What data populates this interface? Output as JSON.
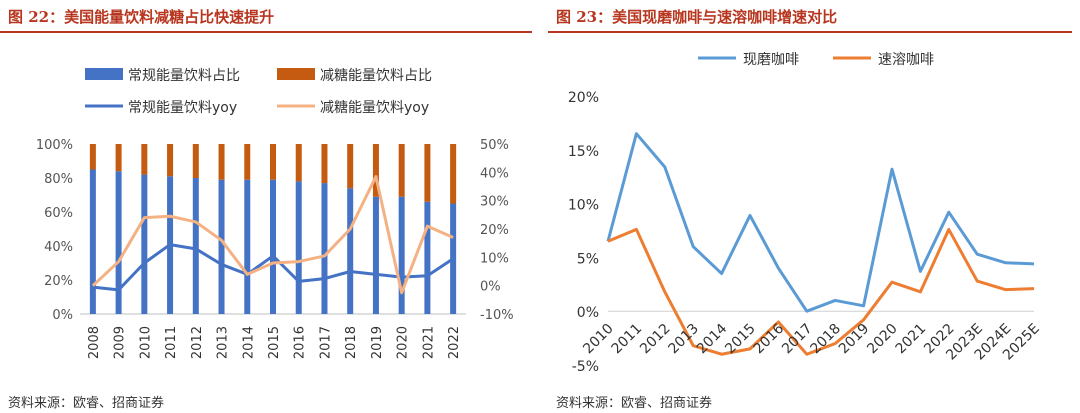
{
  "left": {
    "title": "图 22：美国能量饮料减糖占比快速提升",
    "source": "资料来源：欧睿、招商证券",
    "chart_data": {
      "type": "bar",
      "stacked": true,
      "categories": [
        "2008",
        "2009",
        "2010",
        "2011",
        "2012",
        "2013",
        "2014",
        "2015",
        "2016",
        "2017",
        "2018",
        "2019",
        "2020",
        "2021",
        "2022"
      ],
      "series": [
        {
          "name": "常规能量饮料占比",
          "axis": "left",
          "type": "bar",
          "color": "#4472c4",
          "values": [
            85,
            84,
            82,
            81,
            80,
            79,
            79,
            79,
            78,
            77,
            74,
            69,
            69,
            66,
            65
          ]
        },
        {
          "name": "减糖能量饮料占比",
          "axis": "left",
          "type": "bar",
          "color": "#c55a11",
          "values": [
            15,
            16,
            18,
            19,
            20,
            21,
            21,
            21,
            22,
            23,
            26,
            31,
            31,
            34,
            35
          ]
        },
        {
          "name": "常规能量饮料yoy",
          "axis": "right",
          "type": "line",
          "color": "#4472c4",
          "values": [
            -0.5,
            -1.5,
            8,
            14.5,
            13,
            7.5,
            4,
            10.5,
            1.5,
            2.5,
            5,
            4,
            3,
            3.5,
            9.5
          ]
        },
        {
          "name": "减糖能量饮料yoy",
          "axis": "right",
          "type": "line",
          "color": "#f4b183",
          "values": [
            0,
            8.5,
            24,
            24.5,
            22.5,
            16,
            4,
            8,
            8.5,
            10.5,
            20,
            38.5,
            -2.5,
            21,
            17
          ]
        }
      ],
      "y_left": {
        "min": 0,
        "max": 100,
        "ticks": [
          "0%",
          "20%",
          "40%",
          "60%",
          "80%",
          "100%"
        ]
      },
      "y_right": {
        "min": -10,
        "max": 50,
        "ticks": [
          "-10%",
          "0%",
          "10%",
          "20%",
          "30%",
          "40%",
          "50%"
        ]
      }
    }
  },
  "right": {
    "title": "图 23：美国现磨咖啡与速溶咖啡增速对比",
    "source": "资料来源：欧睿、招商证券",
    "chart_data": {
      "type": "line",
      "categories": [
        "2010",
        "2011",
        "2012",
        "2013",
        "2014",
        "2015",
        "2016",
        "2017",
        "2018",
        "2019",
        "2020",
        "2021",
        "2022",
        "2023E",
        "2024E",
        "2025E"
      ],
      "series": [
        {
          "name": "现磨咖啡",
          "color": "#5b9bd5",
          "values": [
            6.5,
            16.5,
            13.4,
            6,
            3.5,
            8.9,
            4,
            0,
            1,
            0.5,
            13.2,
            3.7,
            9.2,
            5.3,
            4.5,
            4.4
          ]
        },
        {
          "name": "速溶咖啡",
          "color": "#ed7d31",
          "values": [
            6.5,
            7.6,
            1.8,
            -3.2,
            -4,
            -3.5,
            -1,
            -4,
            -3,
            -0.8,
            2.7,
            1.8,
            7.6,
            2.8,
            2,
            2.1
          ]
        }
      ],
      "y": {
        "min": -5,
        "max": 20,
        "ticks": [
          "-5%",
          "0%",
          "5%",
          "10%",
          "15%",
          "20%"
        ]
      }
    }
  }
}
